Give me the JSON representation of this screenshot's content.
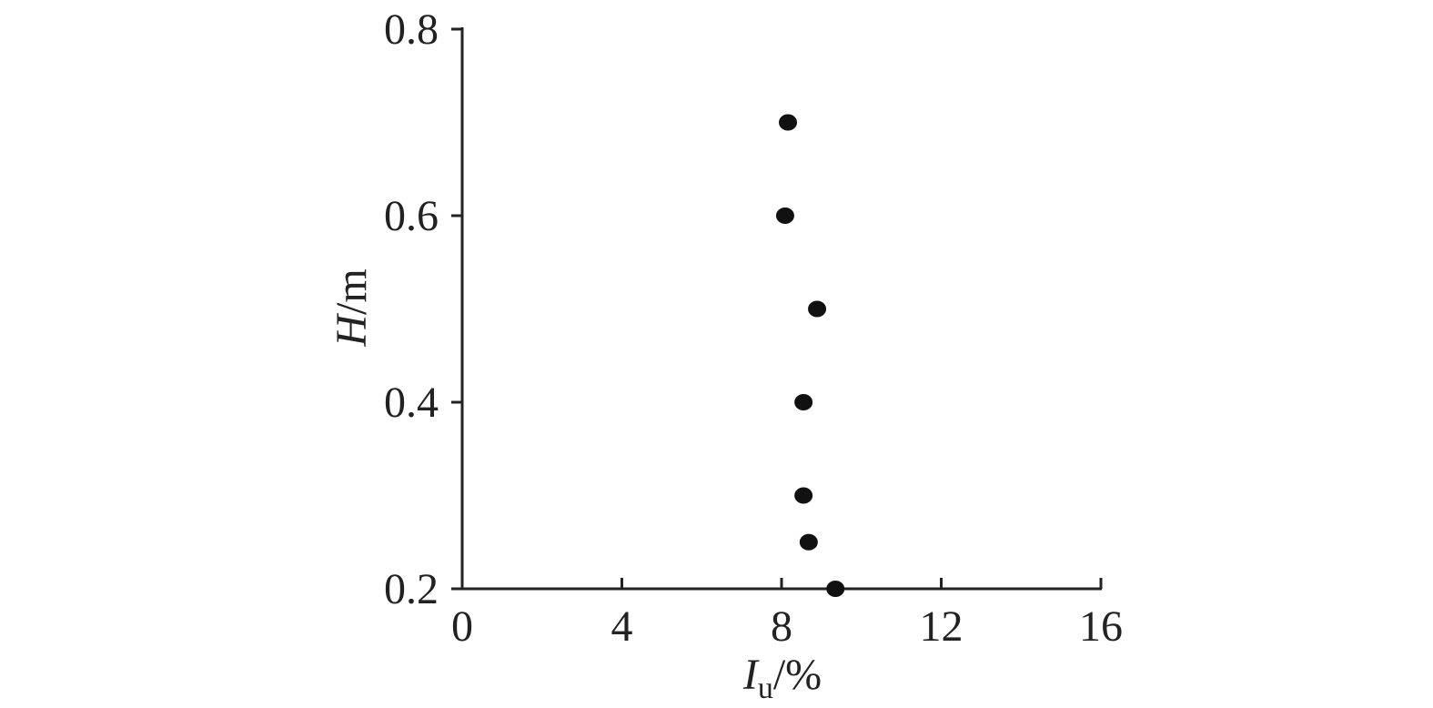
{
  "chart_data": {
    "type": "scatter",
    "x_label": {
      "symbol": "I",
      "subscript": "u",
      "unit": "/%"
    },
    "y_label": {
      "symbol": "H",
      "unit": "/m"
    },
    "x": [
      8.16,
      8.09,
      8.89,
      8.55,
      8.55,
      8.68,
      9.35
    ],
    "values": [
      0.7,
      0.6,
      0.5,
      0.4,
      0.3,
      0.25,
      0.2
    ],
    "color": "#111111",
    "xlim": [
      0,
      16
    ],
    "xticks": [
      0,
      4,
      8,
      12,
      16
    ],
    "ylim": [
      0.2,
      0.8
    ],
    "yticks": [
      0.2,
      0.4,
      0.6,
      0.8
    ]
  }
}
